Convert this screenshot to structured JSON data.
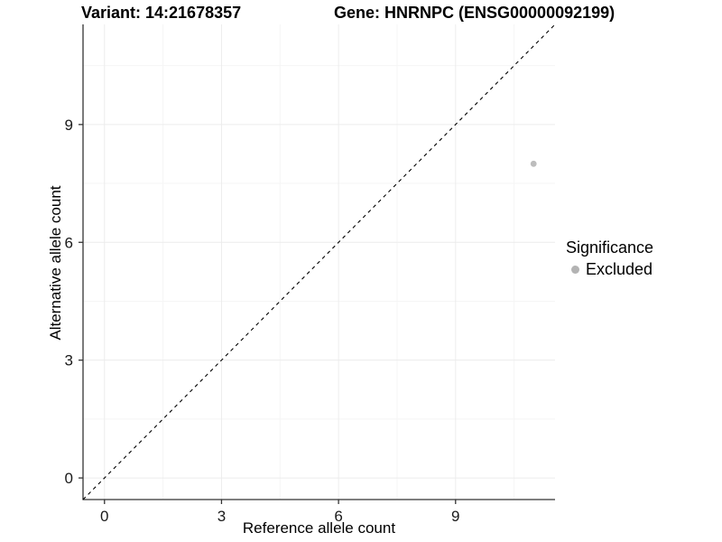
{
  "titles": {
    "variant": "Variant: 14:21678357",
    "gene": "Gene: HNRNPC (ENSG00000092199)"
  },
  "axes": {
    "x_label": "Reference allele count",
    "y_label": "Alternative allele count"
  },
  "legend": {
    "title": "Significance",
    "items": [
      {
        "label": "Excluded",
        "color": "#b3b3b3"
      }
    ]
  },
  "colors": {
    "major_grid": "#ececec",
    "minor_grid": "#f5f5f5",
    "axis": "#333333",
    "tick_label": "#1a1a1a",
    "reference_line": "#000000",
    "point": "#bdbdbd",
    "background": "#ffffff"
  },
  "chart_data": {
    "type": "scatter",
    "title": "Variant: 14:21678357 — Gene: HNRNPC (ENSG00000092199)",
    "xlabel": "Reference allele count",
    "ylabel": "Alternative allele count",
    "xlim": [
      -0.55,
      11.55
    ],
    "ylim": [
      -0.55,
      11.55
    ],
    "x_ticks": [
      0,
      3,
      6,
      9
    ],
    "y_ticks": [
      0,
      3,
      6,
      9
    ],
    "minor_ticks": [
      1.5,
      4.5,
      7.5,
      10.5
    ],
    "grid": true,
    "legend_position": "right",
    "reference_line": {
      "kind": "identity",
      "slope": 1,
      "intercept": 0,
      "style": "dashed"
    },
    "series": [
      {
        "name": "Excluded",
        "color": "#bdbdbd",
        "points": [
          {
            "x": 11,
            "y": 8
          }
        ]
      }
    ]
  }
}
